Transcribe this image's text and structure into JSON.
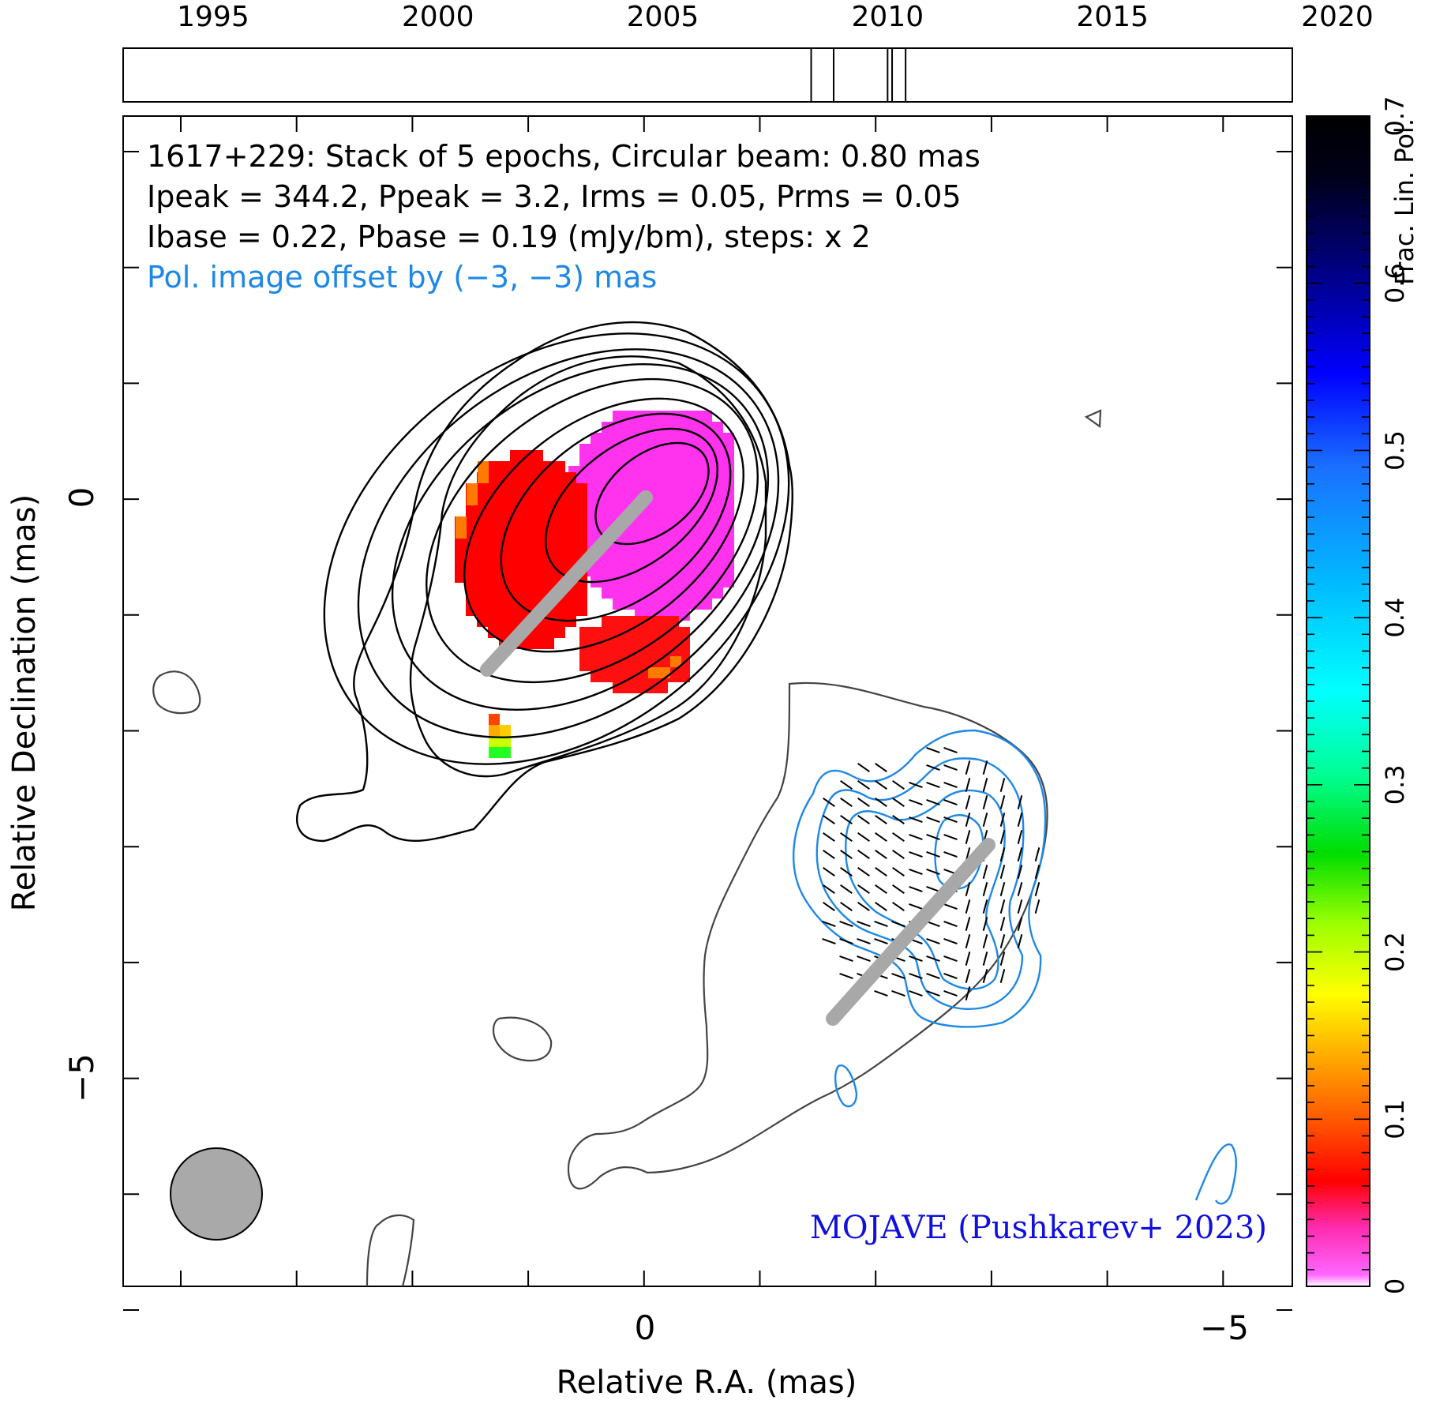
{
  "chart_data": {
    "type": "contour",
    "source_name": "1617+229",
    "annotation": {
      "line1": "1617+229: Stack of 5 epochs, Circular beam: 0.80 mas",
      "line2": "Ipeak = 344.2, Ppeak = 3.2, Irms = 0.05, Prms = 0.05",
      "line3": "Ibase = 0.22, Pbase = 0.19 (mJy/bm), steps: x 2",
      "line4": "Pol. image offset by (−3, −3) mas",
      "credit": "MOJAVE (Pushkarev+ 2023)"
    },
    "xlabel": "Relative R.A. (mas)",
    "ylabel": "Relative Declination (mas)",
    "colorbar_label": "Frac. Lin. Pol.",
    "xlim": [
      4.5,
      -5.6
    ],
    "ylim": [
      -6.8,
      3.3
    ],
    "xtick_labels": [
      {
        "value": 0,
        "label": "0"
      },
      {
        "value": -5,
        "label": "−5"
      }
    ],
    "ytick_labels": [
      {
        "value": 0,
        "label": "0"
      },
      {
        "value": -5,
        "label": "−5"
      }
    ],
    "colorbar": {
      "range": [
        0,
        0.7
      ],
      "ticks": [
        "0",
        "0.1",
        "0.2",
        "0.3",
        "0.4",
        "0.5",
        "0.6",
        "0.7"
      ]
    },
    "timeline": {
      "range": [
        1993,
        2019
      ],
      "ticks": [
        "1995",
        "2000",
        "2005",
        "2010",
        "2015",
        "2020"
      ],
      "epochs": [
        2008.3,
        2008.8,
        2010.0,
        2010.1,
        2010.4
      ]
    },
    "beam_mas": 0.8,
    "ridge_line_total": {
      "from": [
        0,
        0
      ],
      "to": [
        1.4,
        -1.5
      ]
    },
    "ridge_line_pol": {
      "from": [
        -3,
        -3
      ],
      "to": [
        -1.6,
        -4.5
      ]
    }
  },
  "colors": {
    "contour_total": "#000000",
    "contour_pol": "#1e88e5",
    "baseline_contour": "#444444",
    "ridge": "#a8a8a8",
    "beam": "#a9a9a9",
    "offset_text": "#1e88e5",
    "credit_text": "#1010dd"
  }
}
